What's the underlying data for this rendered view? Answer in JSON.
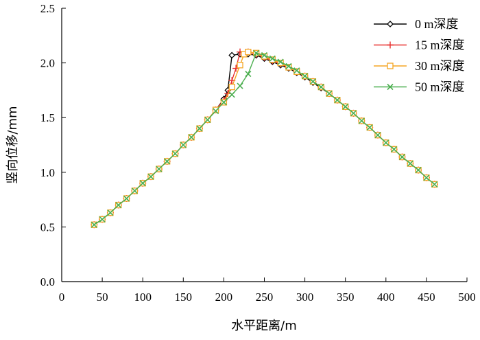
{
  "chart_data": {
    "type": "line",
    "title": "",
    "xlabel": "水平距离/m",
    "ylabel": "竖向位移/mm",
    "xlim": [
      0,
      500
    ],
    "ylim": [
      0.0,
      2.5
    ],
    "xticks": [
      "0",
      "50",
      "100",
      "150",
      "200",
      "250",
      "300",
      "350",
      "400",
      "450",
      "500"
    ],
    "yticks": [
      "0.0",
      "0.5",
      "1.0",
      "1.5",
      "2.0",
      "2.5"
    ],
    "grid": false,
    "legend_position": "top-right",
    "series": [
      {
        "name": "0 m深度",
        "color": "#000000",
        "marker": "diamond",
        "x": [
          40,
          50,
          60,
          70,
          80,
          90,
          100,
          110,
          120,
          130,
          140,
          150,
          160,
          170,
          180,
          190,
          200,
          205,
          210,
          220,
          230,
          240,
          250,
          260,
          270,
          280,
          290,
          300,
          310,
          320,
          330,
          340,
          350,
          360,
          370,
          380,
          390,
          400,
          410,
          420,
          430,
          440,
          450,
          460
        ],
        "y": [
          0.52,
          0.57,
          0.63,
          0.7,
          0.76,
          0.83,
          0.9,
          0.96,
          1.03,
          1.1,
          1.17,
          1.25,
          1.32,
          1.4,
          1.48,
          1.57,
          1.67,
          1.75,
          2.07,
          2.08,
          2.08,
          2.07,
          2.04,
          2.01,
          1.98,
          1.95,
          1.91,
          1.87,
          1.82,
          1.77,
          1.72,
          1.66,
          1.6,
          1.54,
          1.47,
          1.41,
          1.34,
          1.27,
          1.21,
          1.14,
          1.08,
          1.02,
          0.95,
          0.89
        ]
      },
      {
        "name": "15 m深度",
        "color": "#e8312f",
        "marker": "plus",
        "x": [
          40,
          50,
          60,
          70,
          80,
          90,
          100,
          110,
          120,
          130,
          140,
          150,
          160,
          170,
          180,
          190,
          200,
          205,
          210,
          215,
          220,
          230,
          240,
          250,
          260,
          270,
          280,
          290,
          300,
          310,
          320,
          330,
          340,
          350,
          360,
          370,
          380,
          390,
          400,
          410,
          420,
          430,
          440,
          450,
          460
        ],
        "y": [
          0.52,
          0.57,
          0.63,
          0.7,
          0.76,
          0.83,
          0.9,
          0.96,
          1.03,
          1.1,
          1.17,
          1.25,
          1.32,
          1.4,
          1.48,
          1.57,
          1.66,
          1.72,
          1.84,
          1.95,
          2.1,
          2.1,
          2.08,
          2.05,
          2.02,
          1.99,
          1.96,
          1.92,
          1.88,
          1.83,
          1.78,
          1.72,
          1.66,
          1.6,
          1.54,
          1.47,
          1.41,
          1.34,
          1.27,
          1.21,
          1.14,
          1.08,
          1.02,
          0.95,
          0.89
        ]
      },
      {
        "name": "30 m深度",
        "color": "#f5a623",
        "marker": "square",
        "x": [
          40,
          50,
          60,
          70,
          80,
          90,
          100,
          110,
          120,
          130,
          140,
          150,
          160,
          170,
          180,
          190,
          200,
          210,
          220,
          225,
          230,
          240,
          250,
          260,
          270,
          280,
          290,
          300,
          310,
          320,
          330,
          340,
          350,
          360,
          370,
          380,
          390,
          400,
          410,
          420,
          430,
          440,
          450,
          460
        ],
        "y": [
          0.52,
          0.57,
          0.63,
          0.7,
          0.76,
          0.83,
          0.9,
          0.96,
          1.03,
          1.1,
          1.17,
          1.25,
          1.32,
          1.4,
          1.48,
          1.57,
          1.64,
          1.78,
          1.98,
          2.08,
          2.1,
          2.09,
          2.06,
          2.03,
          2.0,
          1.96,
          1.92,
          1.88,
          1.83,
          1.78,
          1.72,
          1.66,
          1.6,
          1.54,
          1.47,
          1.41,
          1.34,
          1.27,
          1.21,
          1.14,
          1.08,
          1.02,
          0.95,
          0.89
        ]
      },
      {
        "name": "50 m深度",
        "color": "#4caf50",
        "marker": "x",
        "x": [
          40,
          50,
          60,
          70,
          80,
          90,
          100,
          110,
          120,
          130,
          140,
          150,
          160,
          170,
          180,
          190,
          200,
          210,
          220,
          230,
          240,
          250,
          260,
          270,
          280,
          290,
          300,
          310,
          320,
          330,
          340,
          350,
          360,
          370,
          380,
          390,
          400,
          410,
          420,
          430,
          440,
          450,
          460
        ],
        "y": [
          0.52,
          0.57,
          0.63,
          0.7,
          0.76,
          0.83,
          0.9,
          0.96,
          1.03,
          1.1,
          1.17,
          1.25,
          1.32,
          1.4,
          1.48,
          1.56,
          1.64,
          1.71,
          1.79,
          1.9,
          2.09,
          2.07,
          2.04,
          2.01,
          1.97,
          1.93,
          1.88,
          1.83,
          1.78,
          1.72,
          1.66,
          1.6,
          1.54,
          1.47,
          1.41,
          1.34,
          1.27,
          1.21,
          1.14,
          1.08,
          1.02,
          0.95,
          0.89
        ]
      }
    ]
  }
}
